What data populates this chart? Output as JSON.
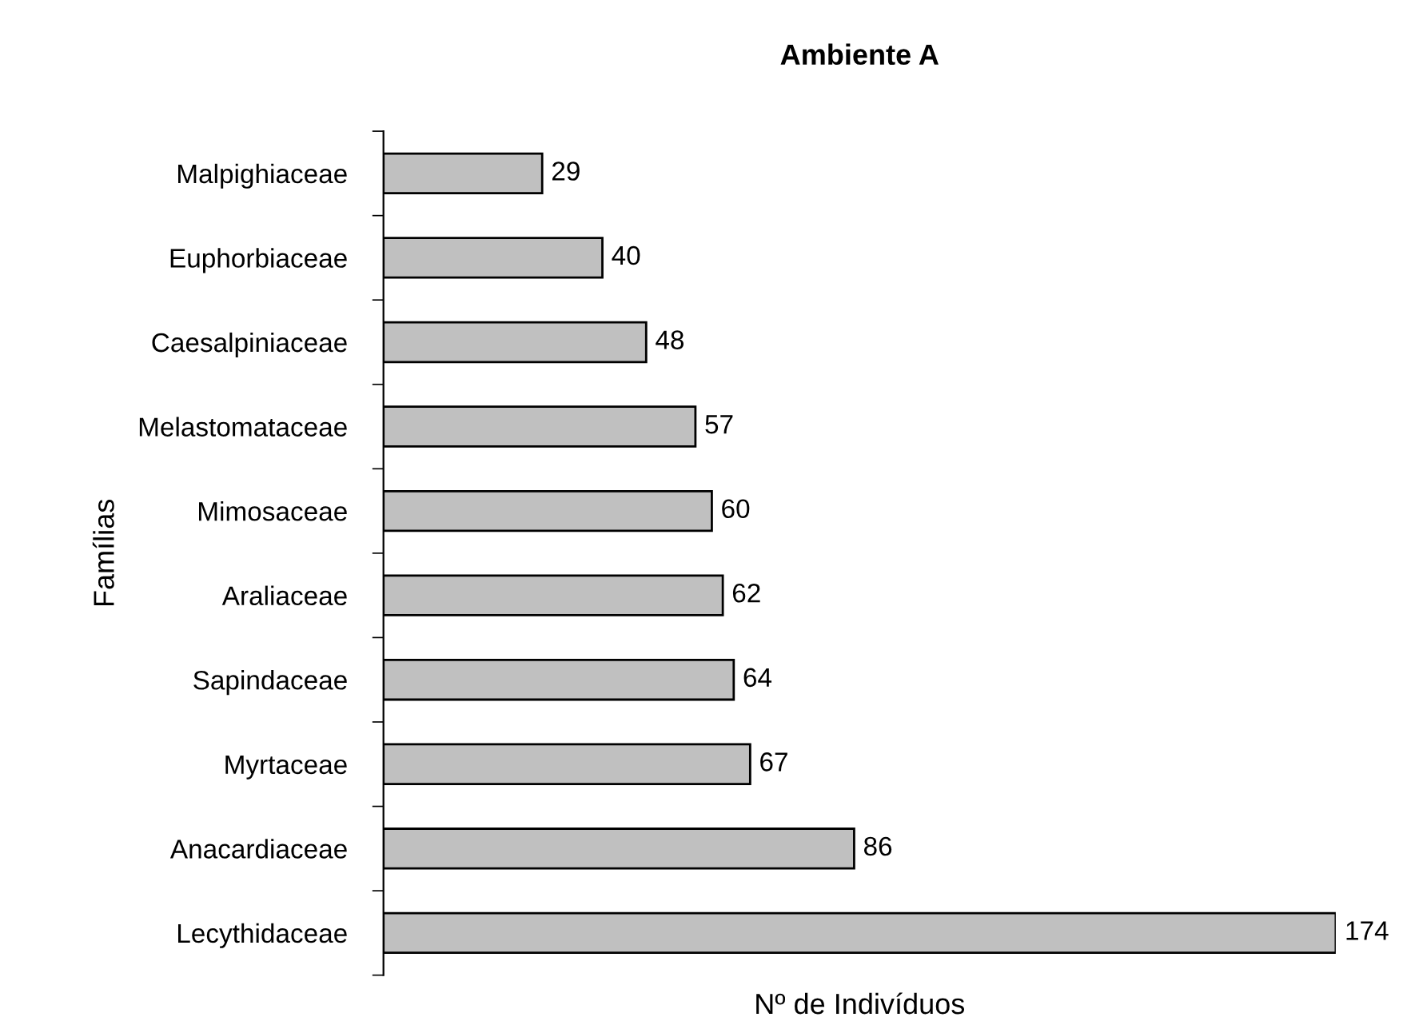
{
  "chart_data": {
    "type": "bar",
    "orientation": "horizontal",
    "title": "Ambiente A",
    "xlabel": "Nº de Indivíduos",
    "ylabel": "Famílias",
    "categories": [
      "Malpighiaceae",
      "Euphorbiaceae",
      "Caesalpiniaceae",
      "Melastomataceae",
      "Mimosaceae",
      "Araliaceae",
      "Sapindaceae",
      "Myrtaceae",
      "Anacardiaceae",
      "Lecythidaceae"
    ],
    "values": [
      29,
      40,
      48,
      57,
      60,
      62,
      64,
      67,
      86,
      174
    ],
    "color": "#c0c0c0",
    "xlim": [
      0,
      174
    ],
    "data_labels": true,
    "tick_labels": "y",
    "grid": false,
    "legend": false
  }
}
